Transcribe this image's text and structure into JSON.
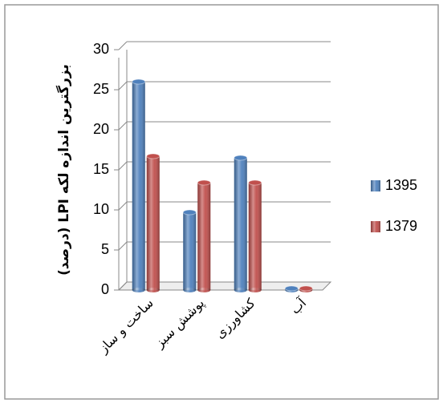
{
  "chart_data": {
    "type": "bar3d",
    "y_label": "بزرگترین اندازه لکه LPI (درصد)",
    "categories": [
      "ساخت و ساز",
      "پوشش سبز",
      "کشاورزی",
      "آب"
    ],
    "series": [
      {
        "name": "1395",
        "color": "#4f81bd",
        "values": [
          26,
          9.7,
          16.5,
          0.2
        ]
      },
      {
        "name": "1379",
        "color": "#c0504d",
        "values": [
          16.7,
          13.4,
          13.4,
          0.2
        ]
      }
    ],
    "ylim": [
      0,
      30
    ],
    "yticks": [
      0,
      5,
      10,
      15,
      20,
      25,
      30
    ],
    "grid": true,
    "legend": "right"
  }
}
